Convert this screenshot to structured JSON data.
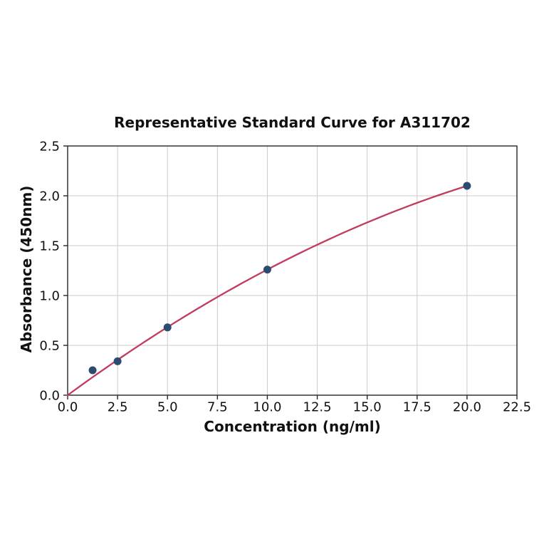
{
  "figure": {
    "background": "#ffffff"
  },
  "chart_data": {
    "type": "scatter",
    "title": "Representative Standard Curve for A311702",
    "xlabel": "Concentration (ng/ml)",
    "ylabel": "Absorbance (450nm)",
    "x": [
      1.25,
      2.5,
      5,
      10,
      20
    ],
    "y": [
      0.25,
      0.34,
      0.68,
      1.26,
      2.1
    ],
    "fit_curve": {
      "type": "quadratic",
      "a": 0.147,
      "b": -0.0021,
      "x_start": 0,
      "x_end": 20,
      "color": "#c13b5e"
    },
    "point_color": "#2c4b6f",
    "xlim": [
      0,
      22.5
    ],
    "ylim": [
      0,
      2.5
    ],
    "xticks": [
      0,
      2.5,
      5,
      7.5,
      10,
      12.5,
      15,
      17.5,
      20,
      22.5
    ],
    "yticks": [
      0,
      0.5,
      1,
      1.5,
      2,
      2.5
    ],
    "xtick_labels": [
      "0.0",
      "2.5",
      "5.0",
      "7.5",
      "10.0",
      "12.5",
      "15.0",
      "17.5",
      "20.0",
      "22.5"
    ],
    "ytick_labels": [
      "0.0",
      "0.5",
      "1.0",
      "1.5",
      "2.0",
      "2.5"
    ],
    "grid": true,
    "grid_color": "#cbcbcb",
    "spine_color": "#262626",
    "text_color": "#111111",
    "legend": null
  }
}
